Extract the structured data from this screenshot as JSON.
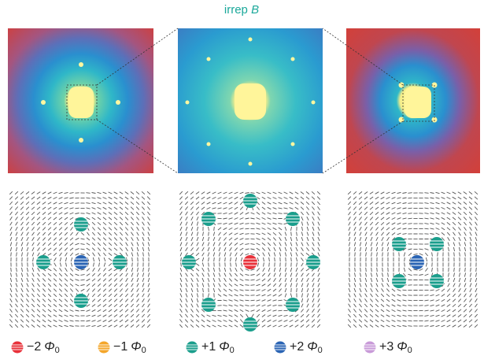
{
  "figure": {
    "title": {
      "text": "irrep",
      "italic": "B",
      "color": "#1aa89a"
    },
    "legend": [
      {
        "color": "#e8313a",
        "coefficient": "−2",
        "symbol": "Φ",
        "subscript": "0"
      },
      {
        "color": "#f4a62a",
        "coefficient": "−1",
        "symbol": "Φ",
        "subscript": "0"
      },
      {
        "color": "#1a9e8c",
        "coefficient": "+1",
        "symbol": "Φ",
        "subscript": "0"
      },
      {
        "color": "#2a64b4",
        "coefficient": "+2",
        "symbol": "Φ",
        "subscript": "0"
      },
      {
        "color": "#c89ad8",
        "coefficient": "+3",
        "symbol": "Φ",
        "subscript": "0"
      }
    ]
  }
}
